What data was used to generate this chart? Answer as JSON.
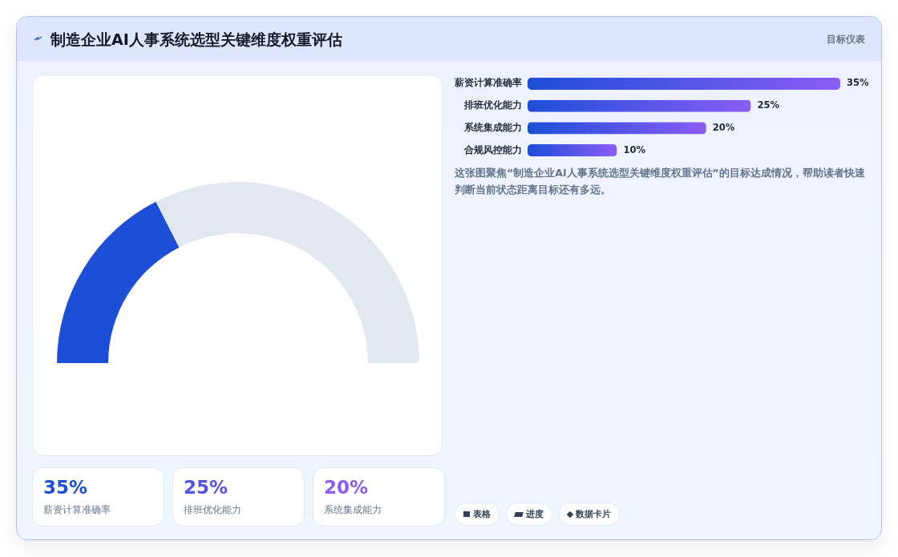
{
  "chart_data": [
    {
      "type": "donut",
      "title": "制造企业AI人事系统选型关键维度权重评估",
      "categories": [
        null,
        null
      ],
      "values": [
        35,
        65
      ],
      "colors": [
        "#1d4ed8",
        "#e2e8f0"
      ]
    },
    {
      "type": "bar",
      "subtitle": "目标仪表",
      "orientation": "horizontal",
      "categories": [
        "薪资计算准确率",
        "排班优化能力",
        "系统集成能力",
        "合规风控能力"
      ],
      "values": [
        35,
        25,
        20,
        10
      ],
      "value_labels": [
        "35%",
        "25%",
        "20%",
        "10%"
      ],
      "color": "#1d4ed8",
      "tick_labels": "y",
      "annotations": [
        "这张图聚焦“制造企业AI人事系统选型关键维度权重评估”的目标达成情况，帮助读者快速判断当前状态距离目标还有多远。",
        "表格",
        "进度",
        "数据卡片"
      ]
    },
    {
      "type": "other",
      "categories": [
        "薪资计算准确率",
        "排班优化能力",
        "系统集成能力"
      ],
      "values": [
        35,
        25,
        20
      ],
      "value_labels": [
        "35%",
        "25%",
        "20%"
      ]
    }
  ]
}
